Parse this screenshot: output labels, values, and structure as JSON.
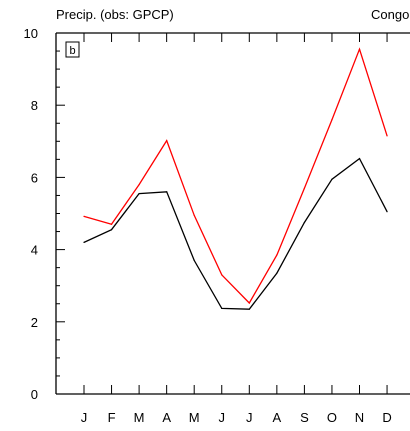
{
  "chart_data": {
    "type": "line",
    "title": "Precip. (obs: GPCP)",
    "title_right": "Congo",
    "panel_label": "b",
    "categories": [
      "J",
      "F",
      "M",
      "A",
      "M",
      "J",
      "J",
      "A",
      "S",
      "O",
      "N",
      "D"
    ],
    "yticks": [
      "0",
      "2",
      "4",
      "6",
      "8",
      "10"
    ],
    "ylim": [
      0,
      10
    ],
    "grid": false,
    "series": [
      {
        "color": "#000000",
        "values": [
          4.2,
          4.55,
          5.55,
          5.6,
          3.7,
          2.37,
          2.35,
          3.35,
          4.75,
          5.95,
          6.52,
          5.05
        ]
      },
      {
        "color": "#ff0000",
        "values": [
          4.92,
          4.7,
          5.8,
          7.02,
          4.95,
          3.3,
          2.52,
          3.85,
          5.7,
          7.6,
          9.55,
          7.15
        ]
      }
    ]
  }
}
